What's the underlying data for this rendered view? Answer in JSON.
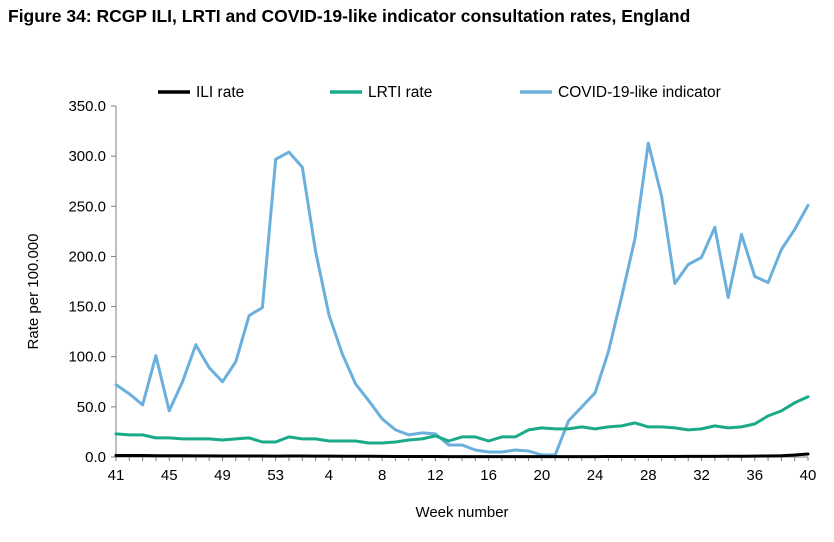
{
  "figure_title": "Figure 34: RCGP ILI, LRTI and COVID-19-like indicator consultation rates, England",
  "chart_data": {
    "type": "line",
    "title": "Figure 34: RCGP ILI, LRTI and COVID-19-like indicator consultation rates, England",
    "xlabel": "Week number",
    "ylabel": "Rate per 100.000",
    "ylim": [
      0,
      350
    ],
    "y_ticks": [
      "0.0",
      "50.0",
      "100.0",
      "150.0",
      "200.0",
      "250.0",
      "300.0",
      "350.0"
    ],
    "x": [
      41,
      42,
      43,
      44,
      45,
      46,
      47,
      48,
      49,
      50,
      51,
      52,
      53,
      1,
      2,
      3,
      4,
      5,
      6,
      7,
      8,
      9,
      10,
      11,
      12,
      13,
      14,
      15,
      16,
      17,
      18,
      19,
      20,
      21,
      22,
      23,
      24,
      25,
      26,
      27,
      28,
      29,
      30,
      31,
      32,
      33,
      34,
      35,
      36,
      37,
      38,
      39,
      40
    ],
    "x_tick_labels": [
      "41",
      "45",
      "49",
      "53",
      "4",
      "8",
      "12",
      "16",
      "20",
      "24",
      "28",
      "32",
      "36",
      "40"
    ],
    "x_tick_indices": [
      0,
      4,
      8,
      12,
      16,
      20,
      24,
      28,
      32,
      36,
      40,
      44,
      48,
      52
    ],
    "grid": false,
    "legend_position": "top",
    "series": [
      {
        "name": "ILI rate",
        "color": "#000000",
        "values": [
          1.5,
          1.5,
          1.5,
          1.3,
          1.2,
          1.2,
          1.1,
          1.1,
          1.0,
          1.0,
          1.0,
          1.0,
          0.9,
          1.0,
          1.0,
          0.9,
          0.9,
          0.8,
          0.8,
          0.7,
          0.6,
          0.5,
          0.5,
          0.5,
          0.5,
          0.4,
          0.4,
          0.4,
          0.4,
          0.4,
          0.4,
          0.4,
          0.4,
          0.4,
          0.4,
          0.4,
          0.4,
          0.5,
          0.5,
          0.5,
          0.5,
          0.5,
          0.5,
          0.6,
          0.6,
          0.6,
          0.7,
          0.8,
          0.9,
          1.0,
          1.3,
          2.0,
          3.0
        ]
      },
      {
        "name": "LRTI rate",
        "color": "#1aaa8a",
        "values": [
          23,
          22,
          22,
          19,
          19,
          18,
          18,
          18,
          17,
          18,
          19,
          15,
          15,
          20,
          18,
          18,
          16,
          16,
          16,
          14,
          14,
          15,
          17,
          18,
          21,
          16,
          20,
          20,
          16,
          20,
          20,
          27,
          29,
          28,
          28,
          30,
          28,
          30,
          31,
          34,
          30,
          30,
          29,
          27,
          28,
          31,
          29,
          30,
          33,
          41,
          46,
          54,
          60
        ]
      },
      {
        "name": "COVID-19-like indicator",
        "color": "#6bb0dc",
        "values": [
          72,
          63,
          52,
          101,
          46,
          75,
          112,
          89,
          75,
          95,
          141,
          149,
          297,
          304,
          289,
          205,
          142,
          103,
          73,
          56,
          38,
          27,
          22,
          24,
          23,
          12,
          12,
          7,
          5,
          5,
          7,
          6,
          2,
          2,
          36,
          50,
          64,
          105,
          160,
          218,
          313,
          260,
          173,
          192,
          199,
          229,
          159,
          222,
          180,
          174,
          207,
          227,
          251
        ]
      }
    ]
  }
}
